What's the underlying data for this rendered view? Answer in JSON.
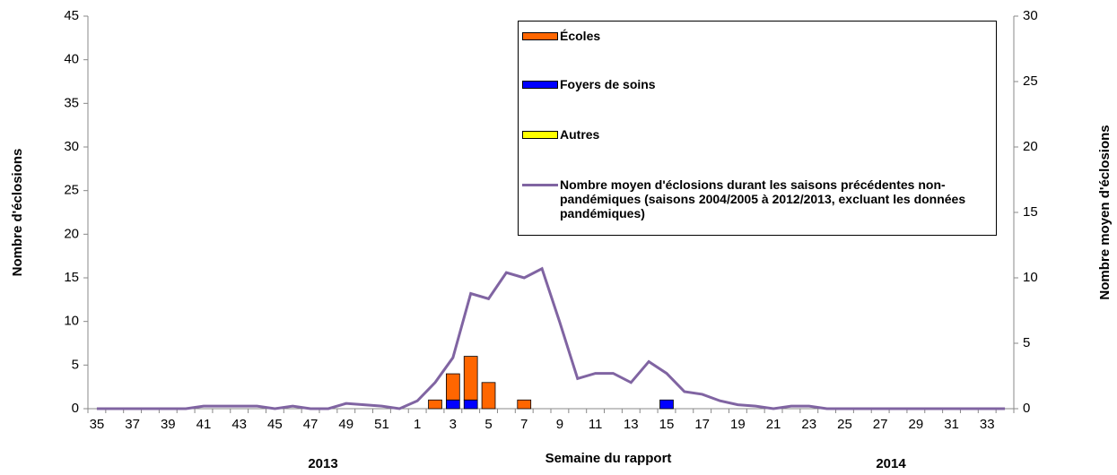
{
  "chart_data": {
    "type": "bar",
    "x_label": "Semaine du rapport",
    "y_label": "Nombre d'éclosions",
    "y2_label": "Nombre moyen d'éclosions",
    "annotations": [
      "2013",
      "2014"
    ],
    "categories": [
      "35",
      null,
      "37",
      null,
      "39",
      null,
      "41",
      null,
      "43",
      null,
      "45",
      null,
      "47",
      null,
      "49",
      null,
      "51",
      null,
      "1",
      null,
      "3",
      null,
      "5",
      null,
      "7",
      null,
      "9",
      null,
      "11",
      null,
      "13",
      null,
      "15",
      null,
      "17",
      null,
      "19",
      null,
      "21",
      null,
      "23",
      null,
      "25",
      null,
      "27",
      null,
      "29",
      null,
      "31",
      null,
      "33",
      null
    ],
    "series": [
      {
        "name": "Écoles",
        "color": "#ff6600",
        "values": [
          0,
          0,
          0,
          0,
          0,
          0,
          0,
          0,
          0,
          0,
          0,
          0,
          0,
          0,
          0,
          0,
          0,
          0,
          0,
          1,
          3,
          5,
          3,
          0,
          1,
          0,
          0,
          0,
          0,
          0,
          0,
          0,
          0,
          0,
          0,
          0,
          0,
          0,
          0,
          0,
          0,
          0,
          0,
          0,
          0,
          0,
          0,
          0,
          0,
          0,
          0,
          0
        ]
      },
      {
        "name": "Foyers de soins",
        "color": "#0000ff",
        "values": [
          0,
          0,
          0,
          0,
          0,
          0,
          0,
          0,
          0,
          0,
          0,
          0,
          0,
          0,
          0,
          0,
          0,
          0,
          0,
          0,
          1,
          1,
          0,
          0,
          0,
          0,
          0,
          0,
          0,
          0,
          0,
          0,
          1,
          0,
          0,
          0,
          0,
          0,
          0,
          0,
          0,
          0,
          0,
          0,
          0,
          0,
          0,
          0,
          0,
          0,
          0,
          0
        ]
      },
      {
        "name": "Autres",
        "color": "#ffff00",
        "values": [
          0,
          0,
          0,
          0,
          0,
          0,
          0,
          0,
          0,
          0,
          0,
          0,
          0,
          0,
          0,
          0,
          0,
          0,
          0,
          0,
          0,
          0,
          0,
          0,
          0,
          0,
          0,
          0,
          0,
          0,
          0,
          0,
          0,
          0,
          0,
          0,
          0,
          0,
          0,
          0,
          0,
          0,
          0,
          0,
          0,
          0,
          0,
          0,
          0,
          0,
          0,
          0
        ]
      },
      {
        "name": "Nombre moyen d'éclosions durant les saisons précédentes non-pandémiques (saisons 2004/2005 à 2012/2013, excluant les données pandémiques)",
        "color": "#8064a2",
        "type": "line",
        "axis": "y2",
        "values": [
          0,
          0,
          0,
          0,
          0,
          0,
          0.2,
          0.2,
          0.2,
          0.2,
          0,
          0.2,
          0,
          0,
          0.4,
          0.3,
          0.2,
          0,
          0.6,
          2,
          3.9,
          8.8,
          8.4,
          10.4,
          10,
          10.7,
          6.6,
          2.3,
          2.7,
          2.7,
          2,
          3.6,
          2.7,
          1.3,
          1.1,
          0.6,
          0.3,
          0.2,
          0,
          0.2,
          0.2,
          0,
          0,
          0,
          0,
          0,
          0,
          0,
          0,
          0,
          0,
          0
        ]
      }
    ],
    "ylim": [
      0,
      45
    ],
    "yticks": [
      0,
      5,
      10,
      15,
      20,
      25,
      30,
      35,
      40,
      45
    ],
    "y2lim": [
      0,
      30
    ],
    "y2ticks": [
      0,
      5,
      10,
      15,
      20,
      25,
      30
    ]
  }
}
